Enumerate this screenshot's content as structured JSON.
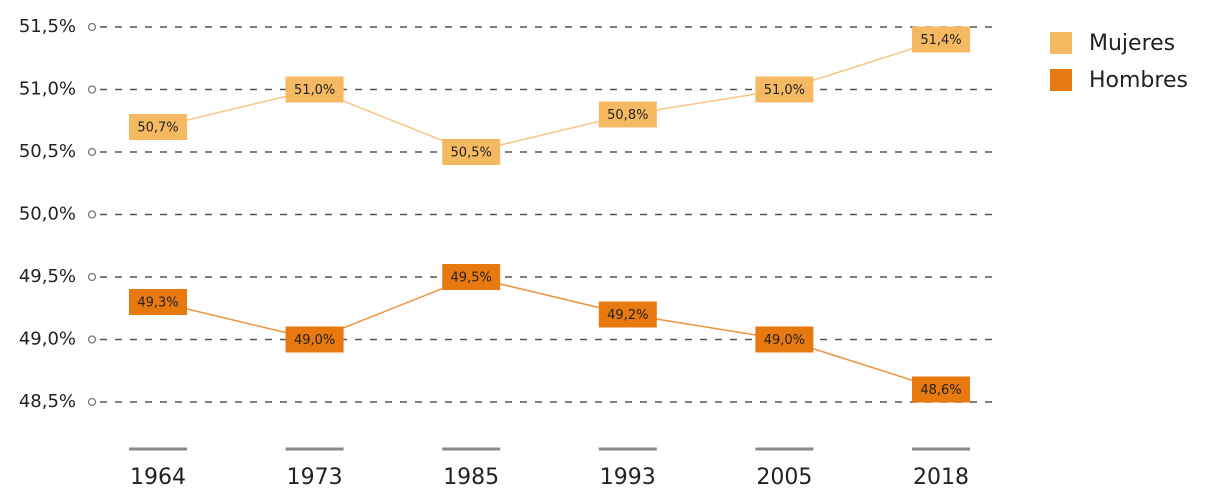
{
  "chart_data": {
    "type": "line",
    "categories": [
      "1964",
      "1973",
      "1985",
      "1993",
      "2005",
      "2018"
    ],
    "series": [
      {
        "name": "Mujeres",
        "color": "#f5b961",
        "values": [
          50.7,
          51.0,
          50.5,
          50.8,
          51.0,
          51.4
        ],
        "value_labels": [
          "50,7%",
          "51,0%",
          "50,5%",
          "50,8%",
          "51,0%",
          "51,4%"
        ]
      },
      {
        "name": "Hombres",
        "color": "#e8790e",
        "values": [
          49.3,
          49.0,
          49.5,
          49.2,
          49.0,
          48.6
        ],
        "value_labels": [
          "49,3%",
          "49,0%",
          "49,5%",
          "49,2%",
          "49,0%",
          "48,6%"
        ]
      }
    ],
    "ylim": [
      48.5,
      51.5
    ],
    "yticks": [
      {
        "value": 48.5,
        "label": "48,5%"
      },
      {
        "value": 49.0,
        "label": "49,0%"
      },
      {
        "value": 49.5,
        "label": "49,5%"
      },
      {
        "value": 50.0,
        "label": "50,0%"
      },
      {
        "value": 50.5,
        "label": "50,5%"
      },
      {
        "value": 51.0,
        "label": "51,0%"
      },
      {
        "value": 51.5,
        "label": "51,5%"
      }
    ],
    "grid": true,
    "legend": "top-right"
  }
}
